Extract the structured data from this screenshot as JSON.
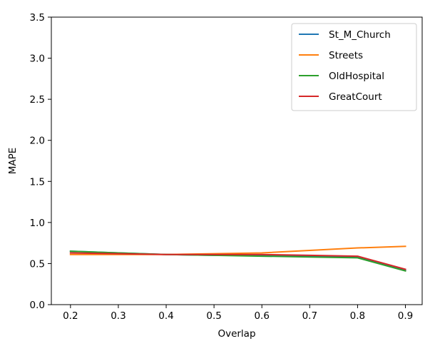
{
  "chart_data": {
    "type": "line",
    "xlabel": "Overlap",
    "ylabel": "MAPE",
    "x": [
      0.2,
      0.3,
      0.4,
      0.5,
      0.6,
      0.7,
      0.8,
      0.9
    ],
    "x_ticks": [
      "0.2",
      "0.3",
      "0.4",
      "0.5",
      "0.6",
      "0.7",
      "0.8",
      "0.9"
    ],
    "xlim": [
      0.16,
      0.935
    ],
    "y_ticks": [
      "0.0",
      "0.5",
      "1.0",
      "1.5",
      "2.0",
      "2.5",
      "3.0",
      "3.5"
    ],
    "ylim": [
      0,
      3.5
    ],
    "grid": false,
    "legend_position": "top-right",
    "series": [
      {
        "name": "St_M_Church",
        "color": "#1f77b4",
        "values": [
          0.65,
          0.63,
          0.61,
          0.6,
          0.6,
          0.59,
          0.58,
          0.42
        ]
      },
      {
        "name": "Streets",
        "color": "#ff7f0e",
        "values": [
          0.61,
          0.61,
          0.61,
          0.62,
          0.63,
          0.66,
          0.69,
          0.71
        ]
      },
      {
        "name": "OldHospital",
        "color": "#2ca02c",
        "values": [
          0.65,
          0.63,
          0.61,
          0.6,
          0.59,
          0.58,
          0.57,
          0.41
        ]
      },
      {
        "name": "GreatCourt",
        "color": "#d62728",
        "values": [
          0.63,
          0.62,
          0.61,
          0.61,
          0.61,
          0.6,
          0.59,
          0.43
        ]
      }
    ]
  }
}
